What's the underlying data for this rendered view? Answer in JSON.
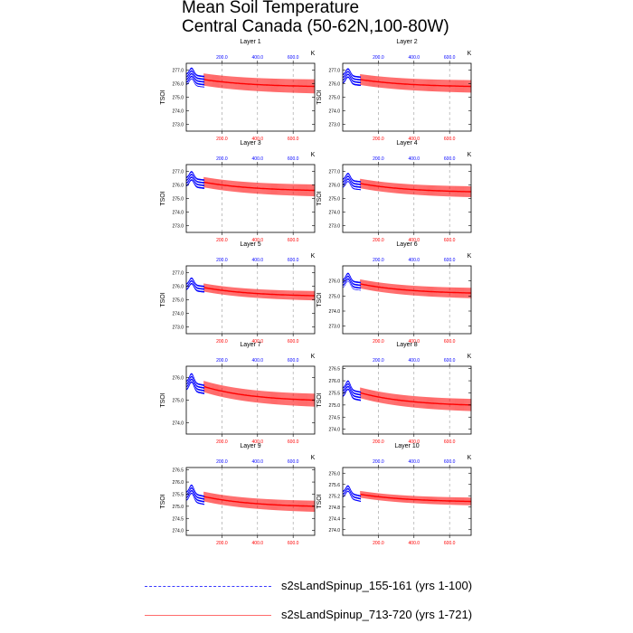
{
  "chart_data": {
    "type": "line",
    "title_line1": "Mean Soil Temperature",
    "title_line2": "Central Canada (50-62N,100-80W)",
    "ylabel": "TSOI",
    "units": "K",
    "x_top_ticks": [
      "200.0",
      "400.0",
      "600.0"
    ],
    "x_bottom_ticks": [
      "200.0",
      "400.0",
      "600.0"
    ],
    "xlim": [
      0,
      721
    ],
    "colors": {
      "series1": "#0000ff",
      "series2": "#ff0000",
      "axis_top": "#0000ff",
      "axis_bottom": "#ff0000"
    },
    "series": [
      {
        "name": "s2sLandSpinup_155-161 (yrs 1-100)",
        "years": [
          1,
          100
        ]
      },
      {
        "name": "s2sLandSpinup_713-720 (yrs 1-721)",
        "years": [
          1,
          721
        ]
      }
    ],
    "panels": [
      {
        "title": "Layer 1",
        "yticks": [
          "273.0",
          "274.0",
          "275.0",
          "276.0",
          "277.0"
        ],
        "ylim": [
          272.5,
          277.5
        ],
        "start": 276.3,
        "end": 275.8,
        "amp": 0.45,
        "bump": 0.5
      },
      {
        "title": "Layer 2",
        "yticks": [
          "273.0",
          "274.0",
          "275.0",
          "276.0",
          "277.0"
        ],
        "ylim": [
          272.5,
          277.5
        ],
        "start": 276.3,
        "end": 275.8,
        "amp": 0.4,
        "bump": 0.5
      },
      {
        "title": "Layer 3",
        "yticks": [
          "273.0",
          "274.0",
          "275.0",
          "276.0",
          "277.0"
        ],
        "ylim": [
          272.5,
          277.5
        ],
        "start": 276.2,
        "end": 275.6,
        "amp": 0.38,
        "bump": 0.5
      },
      {
        "title": "Layer 4",
        "yticks": [
          "273.0",
          "274.0",
          "275.0",
          "276.0",
          "277.0"
        ],
        "ylim": [
          272.5,
          277.5
        ],
        "start": 276.1,
        "end": 275.5,
        "amp": 0.35,
        "bump": 0.5
      },
      {
        "title": "Layer 5",
        "yticks": [
          "273.0",
          "274.0",
          "275.0",
          "276.0",
          "277.0"
        ],
        "ylim": [
          272.5,
          277.5
        ],
        "start": 275.9,
        "end": 275.3,
        "amp": 0.3,
        "bump": 0.5
      },
      {
        "title": "Layer 6",
        "yticks": [
          "273.0",
          "274.0",
          "275.0",
          "276.0"
        ],
        "ylim": [
          272.5,
          277.0
        ],
        "start": 275.8,
        "end": 275.2,
        "amp": 0.3,
        "bump": 0.5
      },
      {
        "title": "Layer 7",
        "yticks": [
          "274.0",
          "275.0",
          "276.0"
        ],
        "ylim": [
          273.5,
          276.5
        ],
        "start": 275.6,
        "end": 275.0,
        "amp": 0.25,
        "bump": 0.4
      },
      {
        "title": "Layer 8",
        "yticks": [
          "274.0",
          "274.5",
          "275.0",
          "275.5",
          "276.0",
          "276.5"
        ],
        "ylim": [
          273.8,
          276.6
        ],
        "start": 275.5,
        "end": 275.0,
        "amp": 0.22,
        "bump": 0.35
      },
      {
        "title": "Layer 9",
        "yticks": [
          "274.0",
          "274.5",
          "275.0",
          "275.5",
          "276.0",
          "276.5"
        ],
        "ylim": [
          273.8,
          276.6
        ],
        "start": 275.4,
        "end": 275.0,
        "amp": 0.2,
        "bump": 0.35
      },
      {
        "title": "Layer 10",
        "yticks": [
          "274.0",
          "274.4",
          "274.8",
          "275.2",
          "275.6",
          "276.0"
        ],
        "ylim": [
          273.8,
          276.2
        ],
        "start": 275.25,
        "end": 275.0,
        "amp": 0.12,
        "bump": 0.25
      }
    ]
  }
}
